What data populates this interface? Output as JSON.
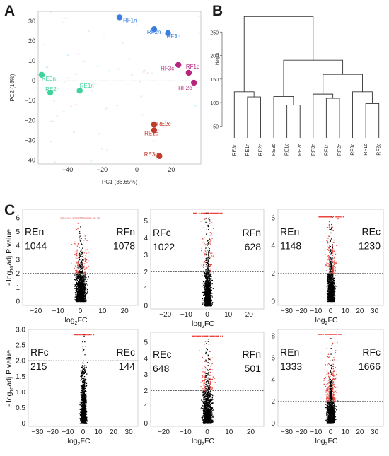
{
  "figure": {
    "panel_letters": [
      "A",
      "B",
      "C"
    ]
  },
  "colors": {
    "RE_n": "#3fd39a",
    "RF_n": "#3a7fe0",
    "RF_c": "#b5267e",
    "RE_c": "#c23a2a",
    "volcano_sig": "#e8231b",
    "volcano_ns": "#000000"
  },
  "chart_data": [
    {
      "type": "scatter",
      "panel": "A",
      "title": "",
      "xlabel": "PC1 (36.65%)",
      "ylabel": "PC2 (18%)",
      "xlim": [
        -57,
        37
      ],
      "ylim": [
        -42,
        35
      ],
      "xticks": [
        -40,
        -20,
        0,
        20
      ],
      "yticks": [
        30,
        20,
        10,
        0,
        -10,
        -20,
        -30,
        -40
      ],
      "grid": false,
      "zero_lines": true,
      "points": [
        {
          "label": "RF1n",
          "x": -10,
          "y": 32,
          "group": "RF_n"
        },
        {
          "label": "RF2n",
          "x": 10,
          "y": 26,
          "group": "RF_n"
        },
        {
          "label": "RF3n",
          "x": 18,
          "y": 24,
          "group": "RF_n"
        },
        {
          "label": "RE3n",
          "x": -55,
          "y": 3,
          "group": "RE_n"
        },
        {
          "label": "RE2n",
          "x": -50,
          "y": -6,
          "group": "RE_n"
        },
        {
          "label": "RE1n",
          "x": -33,
          "y": -5,
          "group": "RE_n"
        },
        {
          "label": "RF3c",
          "x": 24,
          "y": 8,
          "group": "RF_c"
        },
        {
          "label": "RF1c",
          "x": 30,
          "y": 4,
          "group": "RF_c"
        },
        {
          "label": "RF2c",
          "x": 33,
          "y": -1,
          "group": "RF_c"
        },
        {
          "label": "RE2c",
          "x": 10,
          "y": -22,
          "group": "RE_c"
        },
        {
          "label": "RE1c",
          "x": 10,
          "y": -25,
          "group": "RE_c"
        },
        {
          "label": "RE3c",
          "x": 13,
          "y": -38,
          "group": "RE_c"
        }
      ]
    },
    {
      "type": "dendrogram",
      "panel": "B",
      "ylabel": "Height",
      "ylim": [
        25,
        300
      ],
      "yticks": [
        50,
        100,
        150,
        200,
        250
      ],
      "leaves": [
        "RE3n",
        "RE1n",
        "RE2n",
        "RE3c",
        "RE1c",
        "RE2c",
        "RF3n",
        "RF1n",
        "RF2n",
        "RF3c",
        "RF1c",
        "RF2c"
      ],
      "merges": [
        {
          "a": "RE1n",
          "b": "RE2n",
          "height": 112
        },
        {
          "a": "RE3n",
          "b": "m0",
          "height": 123
        },
        {
          "a": "RE1c",
          "b": "RE2c",
          "height": 95
        },
        {
          "a": "RE3c",
          "b": "m2",
          "height": 113
        },
        {
          "a": "RF1n",
          "b": "RF2n",
          "height": 109
        },
        {
          "a": "RF3n",
          "b": "m4",
          "height": 118
        },
        {
          "a": "RF1c",
          "b": "RF2c",
          "height": 98
        },
        {
          "a": "RF3c",
          "b": "m6",
          "height": 123
        },
        {
          "a": "m5",
          "b": "m7",
          "height": 160
        },
        {
          "a": "m3",
          "b": "m8",
          "height": 190
        },
        {
          "a": "m1",
          "b": "m9",
          "height": 283
        }
      ]
    },
    {
      "type": "scatter",
      "subtype": "volcano",
      "panel": "C",
      "xlabel": "log2FC",
      "ylabel": "- log10adj P value",
      "threshold": 2,
      "panels": [
        {
          "left_label": "REn",
          "left_count": "1044",
          "right_label": "RFn",
          "right_count": "1078",
          "xlim": [
            -26,
            26
          ],
          "xticks": [
            -20,
            -10,
            0,
            10,
            20
          ],
          "ylim": [
            -0.3,
            6.6
          ],
          "yticks": [
            0,
            1,
            2,
            3,
            4,
            5,
            6
          ],
          "ymax_data": 6,
          "spread": 4.5
        },
        {
          "left_label": "RFc",
          "left_count": "1022",
          "right_label": "RFn",
          "right_count": "628",
          "xlim": [
            -27,
            27
          ],
          "xticks": [
            -20,
            -10,
            0,
            10,
            20
          ],
          "ylim": [
            -0.2,
            5.7
          ],
          "yticks": [
            0,
            1,
            2,
            3,
            4,
            5
          ],
          "ymax_data": 5.5,
          "spread": 3.5
        },
        {
          "left_label": "REn",
          "left_count": "1148",
          "right_label": "REc",
          "right_count": "1230",
          "xlim": [
            -36,
            36
          ],
          "xticks": [
            -30,
            -20,
            -10,
            0,
            10,
            20,
            30
          ],
          "ylim": [
            -0.3,
            6.6
          ],
          "yticks": [
            0,
            2,
            4,
            6
          ],
          "ymax_data": 6.1,
          "spread": 4.5
        },
        {
          "left_label": "RFc",
          "left_count": "215",
          "right_label": "REc",
          "right_count": "144",
          "xlim": [
            -36,
            36
          ],
          "xticks": [
            -30,
            -20,
            -10,
            0,
            10,
            20,
            30
          ],
          "ylim": [
            -0.1,
            3.0
          ],
          "yticks": [
            0,
            0.5,
            1.0,
            1.5,
            2.0,
            2.5,
            3.0
          ],
          "ytick_labels": [
            "0",
            "0.5",
            "1.0",
            "1.5",
            "2.0",
            "2.5",
            "3.0"
          ],
          "ymax_data": 2.85,
          "spread": 3.5
        },
        {
          "left_label": "REc",
          "left_count": "648",
          "right_label": "RFn",
          "right_count": "501",
          "xlim": [
            -26,
            26
          ],
          "xticks": [
            -20,
            -10,
            0,
            10,
            20
          ],
          "ylim": [
            -0.2,
            5.6
          ],
          "yticks": [
            0,
            1,
            2,
            3,
            4,
            5
          ],
          "ymax_data": 5.4,
          "spread": 4.0
        },
        {
          "left_label": "REn",
          "left_count": "1333",
          "right_label": "RFc",
          "right_count": "1666",
          "xlim": [
            -36,
            36
          ],
          "xticks": [
            -30,
            -20,
            -10,
            0,
            10,
            20,
            30
          ],
          "ylim": [
            -0.3,
            8.6
          ],
          "yticks": [
            0,
            2,
            4,
            6,
            8
          ],
          "ymax_data": 8.2,
          "spread": 5.0
        }
      ]
    }
  ]
}
